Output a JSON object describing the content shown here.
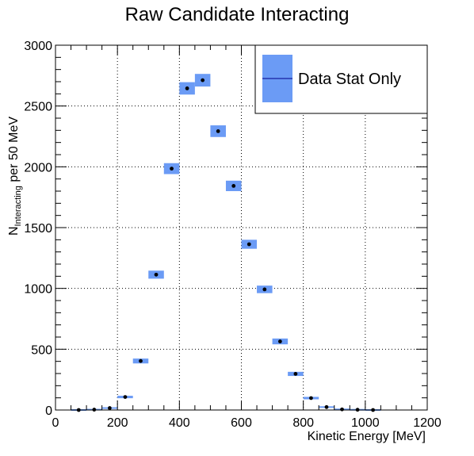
{
  "chart_data": {
    "type": "scatter",
    "title": "Raw Candidate Interacting",
    "xlabel": "Kinetic Energy [MeV]",
    "ylabel": {
      "base": "N",
      "subscript": "Interacting",
      "suffix": " per 50 MeV"
    },
    "xlim": [
      0,
      1200
    ],
    "ylim": [
      0,
      3000
    ],
    "x_ticks": [
      0,
      200,
      400,
      600,
      800,
      1000,
      1200
    ],
    "y_ticks": [
      0,
      500,
      1000,
      1500,
      2000,
      2500,
      3000
    ],
    "grid": true,
    "legend_position": "top-right",
    "bin_width": 50,
    "series": [
      {
        "name": "Data Stat Only",
        "color": "#6b9bf5",
        "marker_color": "#000000",
        "x": [
          75,
          125,
          175,
          225,
          275,
          325,
          375,
          425,
          475,
          525,
          575,
          625,
          675,
          725,
          775,
          825,
          875,
          925,
          975,
          1025
        ],
        "y": [
          0,
          3,
          16,
          107,
          403,
          1113,
          1985,
          2645,
          2712,
          2293,
          1843,
          1363,
          992,
          564,
          297,
          98,
          24,
          5,
          2,
          0
        ],
        "err": [
          0,
          2,
          4,
          10,
          20,
          33,
          45,
          51,
          52,
          48,
          43,
          37,
          31,
          24,
          17,
          10,
          5,
          2,
          1,
          0
        ]
      }
    ]
  }
}
